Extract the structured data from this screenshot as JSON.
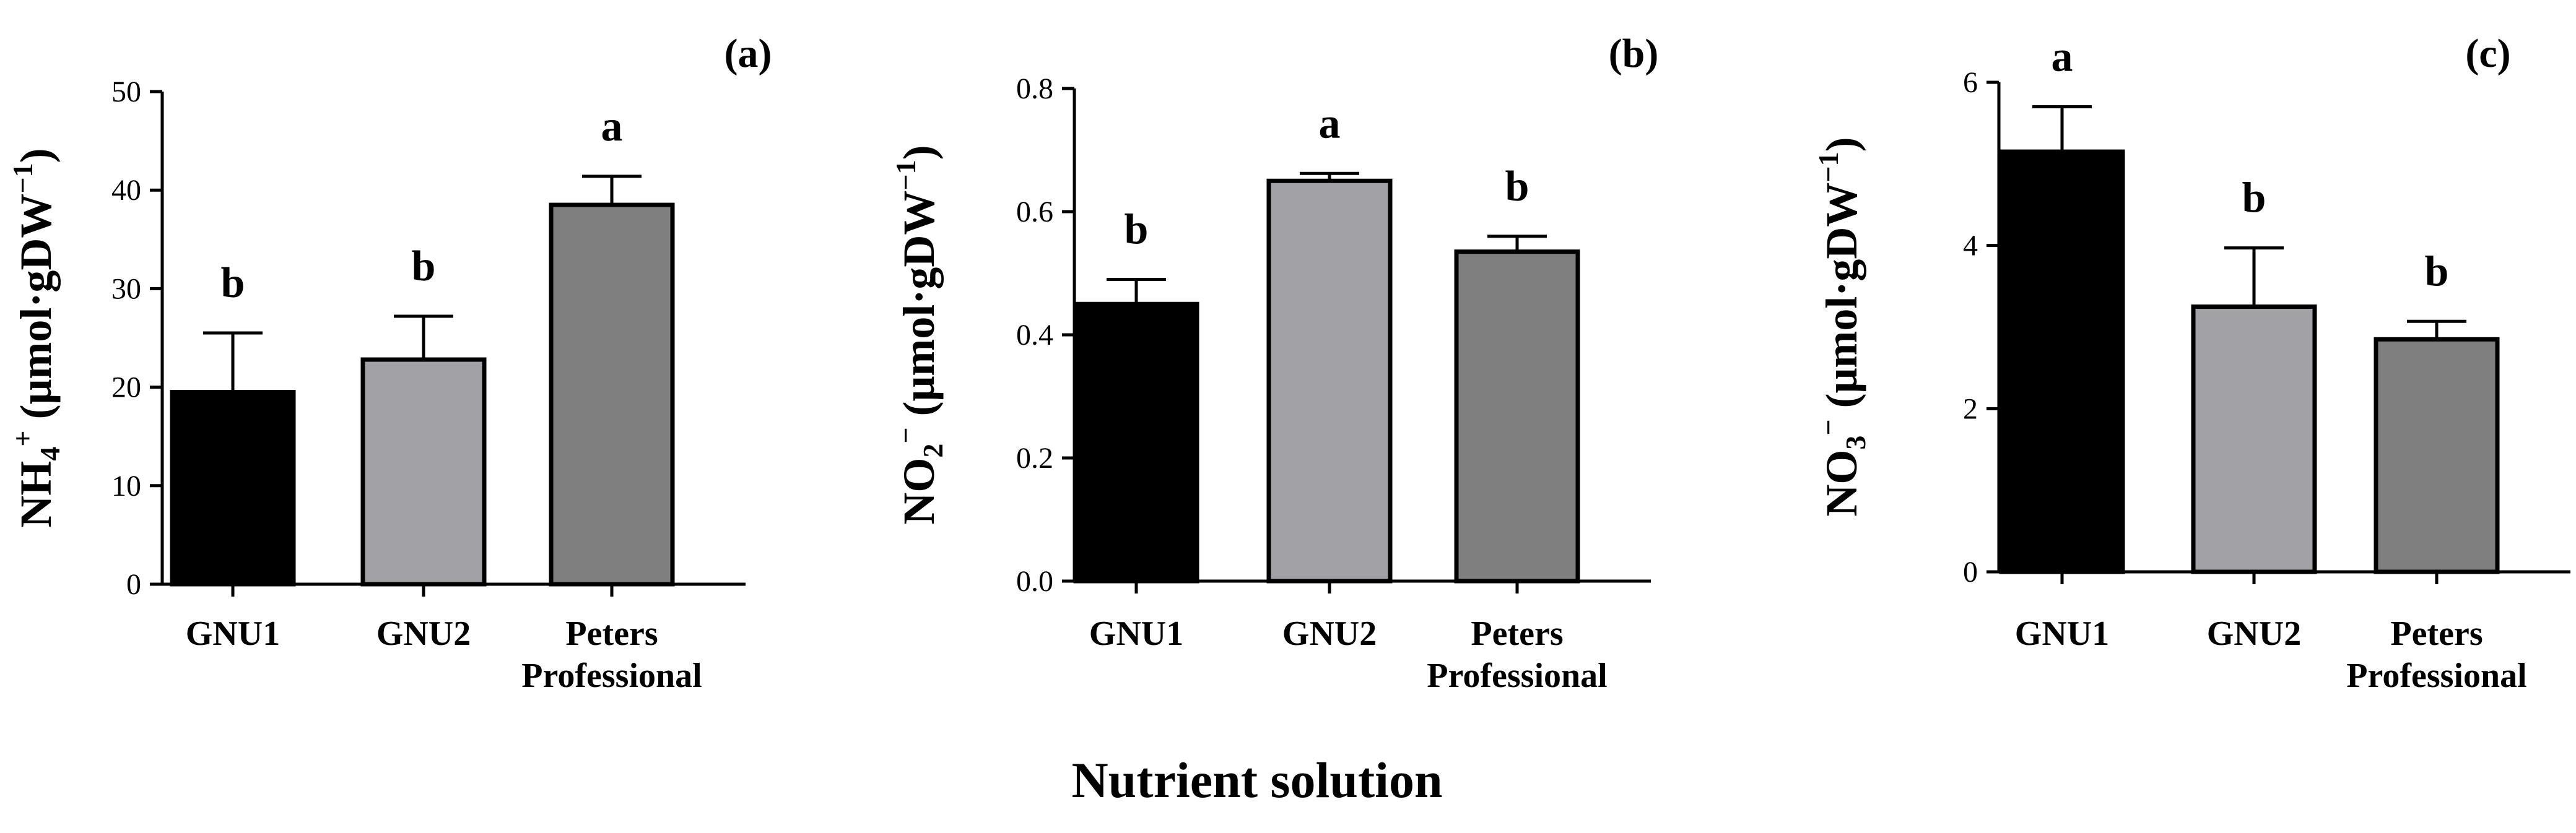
{
  "figure": {
    "xlabel": "Nutrient solution"
  },
  "chart_data": [
    {
      "type": "bar",
      "panel": "(a)",
      "ylabel_main": "NH",
      "ylabel_sub": "4",
      "ylabel_sup": "+",
      "ylabel_unit": "(μmol·gDW",
      "ylabel_unit_sup": "−1",
      "ylabel_close": ")",
      "categories": [
        [
          "GNU1"
        ],
        [
          "GNU2"
        ],
        [
          "Peters",
          "Professional"
        ]
      ],
      "values": [
        19.5,
        22.8,
        38.5
      ],
      "errors": [
        6.0,
        4.4,
        2.9
      ],
      "letters": [
        "b",
        "b",
        "a"
      ],
      "colors": [
        "#000000",
        "#a2a2a6",
        "#7f7f7f"
      ],
      "ylim": [
        0,
        50
      ],
      "yticks": [
        0,
        10,
        20,
        30,
        40,
        50
      ],
      "ytick_labels": [
        "0",
        "10",
        "20",
        "30",
        "40",
        "50"
      ]
    },
    {
      "type": "bar",
      "panel": "(b)",
      "ylabel_main": "NO",
      "ylabel_sub": "2",
      "ylabel_sup": "−",
      "ylabel_unit": "(μmol·gDW",
      "ylabel_unit_sup": "−1",
      "ylabel_close": ")",
      "categories": [
        [
          "GNU1"
        ],
        [
          "GNU2"
        ],
        [
          "Peters",
          "Professional"
        ]
      ],
      "values": [
        0.45,
        0.65,
        0.535
      ],
      "errors": [
        0.04,
        0.012,
        0.025
      ],
      "letters": [
        "b",
        "a",
        "b"
      ],
      "colors": [
        "#000000",
        "#a2a2a6",
        "#7f7f7f"
      ],
      "ylim": [
        0,
        0.8
      ],
      "yticks": [
        0,
        0.2,
        0.4,
        0.6,
        0.8
      ],
      "ytick_labels": [
        "0.0",
        "0.2",
        "0.4",
        "0.6",
        "0.8"
      ]
    },
    {
      "type": "bar",
      "panel": "(c)",
      "ylabel_main": "NO",
      "ylabel_sub": "3",
      "ylabel_sup": "−",
      "ylabel_unit": "(μmol·gDW",
      "ylabel_unit_sup": "−1",
      "ylabel_close": ")",
      "categories": [
        [
          "GNU1"
        ],
        [
          "GNU2"
        ],
        [
          "Peters",
          "Professional"
        ]
      ],
      "values": [
        5.15,
        3.25,
        2.85
      ],
      "errors": [
        0.55,
        0.72,
        0.22
      ],
      "letters": [
        "a",
        "b",
        "b"
      ],
      "colors": [
        "#000000",
        "#a2a2a6",
        "#7f7f7f"
      ],
      "ylim": [
        0,
        6
      ],
      "yticks": [
        0,
        2,
        4,
        6
      ],
      "ytick_labels": [
        "0",
        "2",
        "4",
        "6"
      ]
    }
  ]
}
